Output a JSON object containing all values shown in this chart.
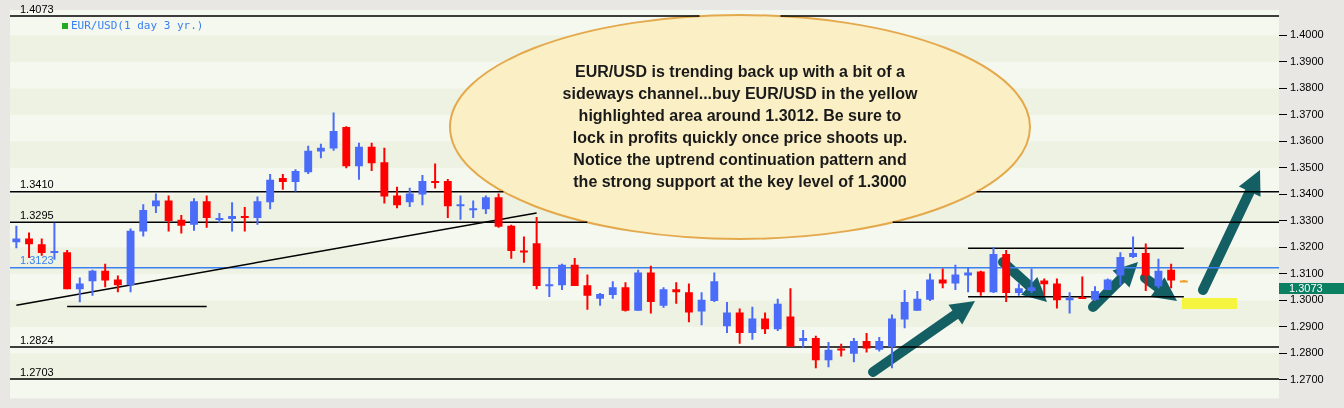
{
  "chart_data": {
    "type": "candlestick",
    "title": "EUR/USD(1 day 3 yr.)",
    "categories": [
      null,
      null,
      null,
      null,
      null,
      null,
      null,
      null,
      null,
      null,
      null,
      null,
      null,
      null,
      null,
      null,
      null,
      null,
      null,
      null,
      null,
      null,
      null,
      null,
      null,
      null,
      null,
      null,
      null,
      null,
      null,
      null,
      null,
      null,
      null,
      null,
      null,
      null,
      null,
      null,
      null,
      null,
      null,
      null,
      null,
      null,
      null,
      null,
      null,
      null,
      null,
      null,
      null,
      null,
      null,
      null,
      null,
      null,
      null,
      null,
      null,
      null,
      null,
      null,
      null,
      null,
      null,
      null,
      null,
      null,
      null,
      null,
      null,
      null,
      null,
      null,
      null,
      null,
      null,
      null,
      null,
      null,
      null,
      null,
      null,
      null,
      null,
      null,
      null,
      null,
      null,
      null,
      null,
      null,
      null,
      null,
      null,
      null,
      null,
      null
    ],
    "ohlc": [
      [
        1.3219,
        1.3282,
        1.3197,
        1.3234
      ],
      [
        1.3234,
        1.3256,
        1.316,
        1.3212
      ],
      [
        1.3212,
        1.3234,
        1.3168,
        1.3179
      ],
      [
        1.3182,
        1.3293,
        1.3153,
        1.3186
      ],
      [
        1.3182,
        1.319,
        1.3042,
        1.3042
      ],
      [
        1.3042,
        1.3086,
        1.2993,
        1.3064
      ],
      [
        1.3072,
        1.3116,
        1.3017,
        1.3112
      ],
      [
        1.3112,
        1.3138,
        1.305,
        1.3075
      ],
      [
        1.3079,
        1.3094,
        1.3031,
        1.3057
      ],
      [
        1.3057,
        1.3271,
        1.3031,
        1.3263
      ],
      [
        1.326,
        1.3363,
        1.3241,
        1.3341
      ],
      [
        1.3355,
        1.3403,
        1.333,
        1.3377
      ],
      [
        1.3377,
        1.3396,
        1.326,
        1.33
      ],
      [
        1.3304,
        1.3322,
        1.3252,
        1.3282
      ],
      [
        1.3285,
        1.3385,
        1.3263,
        1.3374
      ],
      [
        1.3374,
        1.3396,
        1.3274,
        1.3311
      ],
      [
        1.3304,
        1.333,
        1.3293,
        1.3311
      ],
      [
        1.3307,
        1.337,
        1.326,
        1.3318
      ],
      [
        1.3318,
        1.3352,
        1.326,
        1.3311
      ],
      [
        1.3311,
        1.3392,
        1.3285,
        1.3374
      ],
      [
        1.337,
        1.3477,
        1.3344,
        1.3455
      ],
      [
        1.3462,
        1.3477,
        1.3418,
        1.3447
      ],
      [
        1.3447,
        1.3495,
        1.3411,
        1.3488
      ],
      [
        1.3484,
        1.3584,
        1.3477,
        1.3565
      ],
      [
        1.3562,
        1.3591,
        1.3536,
        1.3576
      ],
      [
        1.3573,
        1.3709,
        1.3565,
        1.3639
      ],
      [
        1.3654,
        1.3657,
        1.3499,
        1.3506
      ],
      [
        1.3506,
        1.3595,
        1.3455,
        1.358
      ],
      [
        1.358,
        1.3595,
        1.3488,
        1.3518
      ],
      [
        1.3521,
        1.3576,
        1.3366,
        1.3392
      ],
      [
        1.3396,
        1.3429,
        1.3348,
        1.3359
      ],
      [
        1.337,
        1.3425,
        1.3352,
        1.3403
      ],
      [
        1.34,
        1.3473,
        1.3359,
        1.3451
      ],
      [
        1.3451,
        1.3517,
        1.3422,
        1.3447
      ],
      [
        1.3451,
        1.3458,
        1.3311,
        1.3355
      ],
      [
        1.3359,
        1.3396,
        1.3304,
        1.3363
      ],
      [
        1.3344,
        1.3377,
        1.3311,
        1.3348
      ],
      [
        1.3344,
        1.3396,
        1.3326,
        1.3389
      ],
      [
        1.3389,
        1.3403,
        1.3274,
        1.3278
      ],
      [
        1.3282,
        1.3285,
        1.3157,
        1.3186
      ],
      [
        1.3188,
        1.3241,
        1.3142,
        1.3186
      ],
      [
        1.3216,
        1.3315,
        1.3042,
        1.3054
      ],
      [
        1.3054,
        1.3123,
        1.3013,
        1.3061
      ],
      [
        1.3057,
        1.3138,
        1.3039,
        1.3134
      ],
      [
        1.3134,
        1.316,
        1.3054,
        1.3054
      ],
      [
        1.3057,
        1.3098,
        1.2965,
        1.3017
      ],
      [
        1.3006,
        1.3028,
        1.298,
        1.3024
      ],
      [
        1.302,
        1.3072,
        1.3006,
        1.305
      ],
      [
        1.305,
        1.3068,
        1.2958,
        1.2961
      ],
      [
        1.2961,
        1.3116,
        1.2961,
        1.3105
      ],
      [
        1.3105,
        1.3131,
        1.295,
        1.2994
      ],
      [
        1.298,
        1.305,
        1.2972,
        1.3042
      ],
      [
        1.3042,
        1.3068,
        1.2987,
        1.3031
      ],
      [
        1.3031,
        1.3064,
        1.2917,
        1.2954
      ],
      [
        1.2958,
        1.3031,
        1.2906,
        1.3002
      ],
      [
        1.2998,
        1.3105,
        1.2994,
        1.3072
      ],
      [
        1.2902,
        1.2994,
        1.2877,
        1.2954
      ],
      [
        1.2954,
        1.2969,
        1.2836,
        1.2877
      ],
      [
        1.2877,
        1.2976,
        1.2851,
        1.2932
      ],
      [
        1.2932,
        1.2954,
        1.2873,
        1.2891
      ],
      [
        1.2891,
        1.3006,
        1.2884,
        1.2987
      ],
      [
        1.2939,
        1.3046,
        1.2825,
        1.2825
      ],
      [
        1.2847,
        1.2888,
        1.2822,
        1.2858
      ],
      [
        1.2858,
        1.2866,
        1.2744,
        1.2774
      ],
      [
        1.2774,
        1.2843,
        1.2748,
        1.2814
      ],
      [
        1.2818,
        1.2836,
        1.2788,
        1.2814
      ],
      [
        1.2799,
        1.2858,
        1.2766,
        1.2847
      ],
      [
        1.2847,
        1.2877,
        1.2803,
        1.2818
      ],
      [
        1.2814,
        1.2862,
        1.2807,
        1.2847
      ],
      [
        1.2825,
        1.2947,
        1.2744,
        1.2932
      ],
      [
        1.2928,
        1.3039,
        1.2895,
        1.2994
      ],
      [
        1.2961,
        1.3035,
        1.2961,
        1.3006
      ],
      [
        1.3002,
        1.3101,
        1.2998,
        1.3079
      ],
      [
        1.3079,
        1.312,
        1.3046,
        1.3064
      ],
      [
        1.3064,
        1.3134,
        1.3039,
        1.3098
      ],
      [
        1.3094,
        1.3123,
        1.3031,
        1.3105
      ],
      [
        1.3109,
        1.3112,
        1.3017,
        1.3031
      ],
      [
        1.3031,
        1.3201,
        1.3028,
        1.3175
      ],
      [
        1.3175,
        1.319,
        1.2994,
        1.3028
      ],
      [
        1.3028,
        1.3064,
        1.3017,
        1.3046
      ],
      [
        1.3035,
        1.312,
        1.3028,
        1.305
      ],
      [
        1.3075,
        1.3083,
        1.3017,
        1.3061
      ],
      [
        1.3064,
        1.3083,
        1.2969,
        1.3
      ],
      [
        1.3,
        1.3031,
        1.295,
        1.3009
      ],
      [
        1.3013,
        1.309,
        1.3006,
        1.3006
      ],
      [
        1.3002,
        1.3053,
        1.2998,
        1.3035
      ],
      [
        1.3039,
        1.3083,
        1.3039,
        1.3079
      ],
      [
        1.3094,
        1.3182,
        1.3057,
        1.3164
      ],
      [
        1.3164,
        1.3241,
        1.316,
        1.3179
      ],
      [
        1.3179,
        1.3215,
        1.3035,
        1.3094
      ],
      [
        1.3053,
        1.3157,
        1.3046,
        1.3112
      ],
      [
        1.3116,
        1.3138,
        1.3046,
        1.3075
      ],
      [
        1.3075,
        1.3077,
        1.307,
        1.3073
      ],
      null,
      null,
      null,
      null,
      null,
      null,
      null
    ],
    "colors": [
      "#4a6cf8",
      "#ff0000",
      "#ff0000",
      "#4a6cf8",
      "#ff0000",
      "#4a6cf8",
      "#4a6cf8",
      "#ff0000",
      "#ff0000",
      "#4a6cf8",
      "#4a6cf8",
      "#4a6cf8",
      "#ff0000",
      "#ff0000",
      "#4a6cf8",
      "#ff0000",
      "#4a6cf8",
      "#4a6cf8",
      "#ff0000",
      "#4a6cf8",
      "#4a6cf8",
      "#ff0000",
      "#4a6cf8",
      "#4a6cf8",
      "#4a6cf8",
      "#4a6cf8",
      "#ff0000",
      "#4a6cf8",
      "#ff0000",
      "#ff0000",
      "#ff0000",
      "#4a6cf8",
      "#4a6cf8",
      "#ff0000",
      "#ff0000",
      "#4a6cf8",
      "#4a6cf8",
      "#4a6cf8",
      "#ff0000",
      "#ff0000",
      "#ff0000",
      "#ff0000",
      "#4a6cf8",
      "#4a6cf8",
      "#ff0000",
      "#ff0000",
      "#4a6cf8",
      "#4a6cf8",
      "#ff0000",
      "#4a6cf8",
      "#ff0000",
      "#4a6cf8",
      "#ff0000",
      "#ff0000",
      "#4a6cf8",
      "#4a6cf8",
      "#4a6cf8",
      "#ff0000",
      "#4a6cf8",
      "#ff0000",
      "#4a6cf8",
      "#ff0000",
      "#4a6cf8",
      "#ff0000",
      "#4a6cf8",
      "#ff0000",
      "#4a6cf8",
      "#ff0000",
      "#4a6cf8",
      "#4a6cf8",
      "#4a6cf8",
      "#4a6cf8",
      "#4a6cf8",
      "#ff0000",
      "#4a6cf8",
      "#4a6cf8",
      "#ff0000",
      "#4a6cf8",
      "#ff0000",
      "#4a6cf8",
      "#4a6cf8",
      "#ff0000",
      "#ff0000",
      "#4a6cf8",
      "#ff0000",
      "#4a6cf8",
      "#4a6cf8",
      "#4a6cf8",
      "#4a6cf8",
      "#ff0000",
      "#4a6cf8",
      "#ff0000",
      "#f0a020",
      null,
      null,
      null,
      null,
      null,
      null,
      null
    ],
    "series": [
      {
        "type": "line",
        "color": "#000000",
        "values": [
          1.2982,
          null,
          null,
          null,
          null,
          null,
          null,
          null,
          null,
          null,
          null,
          null,
          null,
          null,
          null,
          null,
          null,
          null,
          null,
          null,
          null,
          null,
          null,
          null,
          null,
          null,
          null,
          null,
          null,
          null,
          null,
          null,
          null,
          null,
          null,
          null,
          null,
          null,
          null,
          null,
          null,
          1.333,
          null,
          null,
          null,
          null,
          null,
          null,
          null,
          null,
          null,
          null,
          null,
          null,
          null,
          null,
          null,
          null,
          null,
          null,
          null,
          null,
          null,
          null,
          null,
          null,
          null,
          null,
          null,
          null,
          null,
          null,
          null,
          null,
          null,
          null,
          null,
          null,
          null,
          null,
          null,
          null,
          null,
          null,
          null,
          null,
          null,
          null,
          null,
          null,
          null,
          null,
          null,
          null,
          null,
          null,
          null,
          null,
          null,
          null
        ]
      },
      {
        "type": "line",
        "color": "#000000",
        "values": [
          null,
          null,
          null,
          null,
          1.2977,
          null,
          null,
          null,
          null,
          null,
          null,
          null,
          null,
          null,
          null,
          1.2977,
          null,
          null,
          null,
          null,
          null,
          null,
          null,
          null,
          null,
          null,
          null,
          null,
          null,
          null,
          null,
          null,
          null,
          null,
          null,
          null,
          null,
          null,
          null,
          null,
          null,
          null,
          null,
          null,
          null,
          null,
          null,
          null,
          null,
          null,
          null,
          null,
          null,
          null,
          null,
          null,
          null,
          null,
          null,
          null,
          null,
          null,
          null,
          null,
          null,
          null,
          null,
          null,
          null,
          null,
          null,
          null,
          null,
          null,
          null,
          null,
          null,
          null,
          null,
          null,
          null,
          null,
          null,
          null,
          null,
          null,
          null,
          null,
          null,
          null,
          null,
          null,
          null,
          null,
          null,
          null,
          null,
          null,
          null,
          null
        ]
      },
      {
        "type": "line",
        "color": "#000000",
        "values": [
          null,
          null,
          null,
          null,
          null,
          null,
          null,
          null,
          null,
          null,
          null,
          null,
          null,
          null,
          null,
          null,
          null,
          null,
          null,
          null,
          null,
          null,
          null,
          null,
          null,
          null,
          null,
          null,
          null,
          null,
          null,
          null,
          null,
          null,
          null,
          null,
          null,
          null,
          null,
          null,
          null,
          null,
          null,
          null,
          null,
          null,
          null,
          null,
          null,
          null,
          null,
          null,
          null,
          null,
          null,
          null,
          null,
          null,
          null,
          null,
          null,
          null,
          null,
          null,
          null,
          null,
          null,
          null,
          null,
          null,
          null,
          null,
          null,
          null,
          null,
          1.3197,
          null,
          null,
          null,
          null,
          null,
          null,
          null,
          null,
          null,
          null,
          null,
          null,
          null,
          null,
          null,
          null,
          1.3197,
          null,
          null,
          null,
          null,
          null,
          null,
          null
        ]
      },
      {
        "type": "line",
        "color": "#000000",
        "values": [
          null,
          null,
          null,
          null,
          null,
          null,
          null,
          null,
          null,
          null,
          null,
          null,
          null,
          null,
          null,
          null,
          null,
          null,
          null,
          null,
          null,
          null,
          null,
          null,
          null,
          null,
          null,
          null,
          null,
          null,
          null,
          null,
          null,
          null,
          null,
          null,
          null,
          null,
          null,
          null,
          null,
          null,
          null,
          null,
          null,
          null,
          null,
          null,
          null,
          null,
          null,
          null,
          null,
          null,
          null,
          null,
          null,
          null,
          null,
          null,
          null,
          null,
          null,
          null,
          null,
          null,
          null,
          null,
          null,
          null,
          null,
          null,
          null,
          null,
          null,
          1.3014,
          null,
          null,
          null,
          null,
          null,
          null,
          null,
          null,
          null,
          null,
          null,
          null,
          null,
          null,
          null,
          null,
          1.3014,
          null,
          null,
          null,
          null,
          null,
          null,
          null
        ]
      }
    ],
    "ylim": [
      1.263,
      1.4096
    ],
    "yticks": [
      {
        "value": 1.27,
        "label": "1.2700"
      },
      {
        "value": 1.28,
        "label": "1.2800"
      },
      {
        "value": 1.29,
        "label": "1.2900"
      },
      {
        "value": 1.3,
        "label": "1.3000"
      },
      {
        "value": 1.31,
        "label": "1.3100"
      },
      {
        "value": 1.32,
        "label": "1.3200"
      },
      {
        "value": 1.33,
        "label": "1.3300"
      },
      {
        "value": 1.34,
        "label": "1.3400"
      },
      {
        "value": 1.35,
        "label": "1.3500"
      },
      {
        "value": 1.36,
        "label": "1.3600"
      },
      {
        "value": 1.37,
        "label": "1.3700"
      },
      {
        "value": 1.38,
        "label": "1.3800"
      },
      {
        "value": 1.39,
        "label": "1.3900"
      },
      {
        "value": 1.4,
        "label": "1.4000"
      }
    ],
    "tick_labels": "y",
    "ref_lines": [
      {
        "axis": "y",
        "value": 1.4073,
        "label": "1.4073",
        "color": "#000000"
      },
      {
        "axis": "y",
        "value": 1.341,
        "label": "1.3410",
        "color": "#000000"
      },
      {
        "axis": "y",
        "value": 1.3295,
        "label": "1.3295",
        "color": "#000000"
      },
      {
        "axis": "y",
        "value": 1.3123,
        "label": "1.3123",
        "color": "#3a80f0"
      },
      {
        "axis": "y",
        "value": 1.2824,
        "label": "1.2824",
        "color": "#000000"
      },
      {
        "axis": "y",
        "value": 1.2703,
        "label": "1.2703",
        "color": "#000000"
      }
    ],
    "annotations": [
      "EUR/USD is trending back up with a bit of a\nsideways channel...buy EUR/USD in the yellow\nhighlighted area around 1.3012. Be sure to\nlock in profits quickly once price shoots up.\nNotice the uptrend continuation pattern and\nthe strong support at the key level of 1.3000",
      "1.3073"
    ]
  }
}
